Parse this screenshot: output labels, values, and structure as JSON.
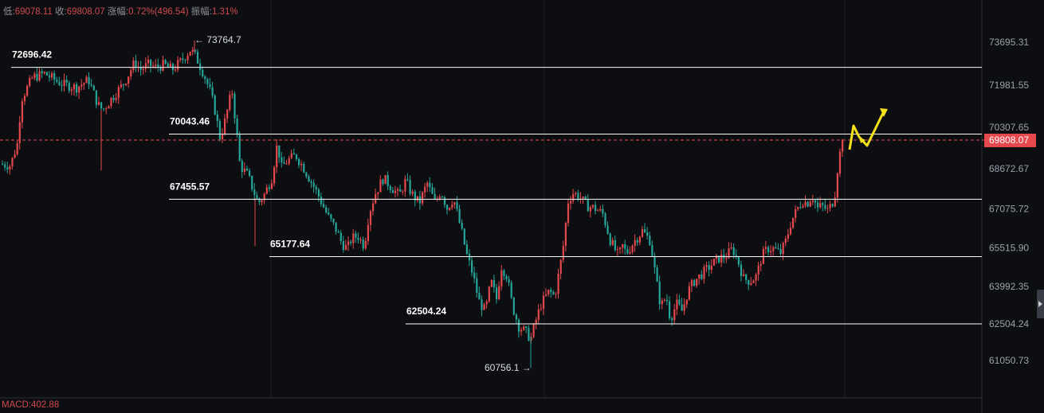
{
  "header": {
    "low_label": "低:",
    "low_value": "69078.11",
    "close_label": "收:",
    "close_value": "69808.07",
    "change_label": "涨幅:",
    "change_value": "0.72%(496.54)",
    "amp_label": "振幅:",
    "amp_value": "1.31%"
  },
  "macd": "MACD:402.88",
  "colors": {
    "up": "#e5484d",
    "down": "#26a69a",
    "background": "#0d0e11",
    "grid": "#1c1e23",
    "level": "#ffffff",
    "current": "#e5484d",
    "arrow": "#f5e11b",
    "axis_text": "#9aa0aa"
  },
  "chart_data": {
    "type": "candlestick",
    "y_ticks": [
      "73695.31",
      "71981.55",
      "70307.65",
      "68672.67",
      "67075.72",
      "65515.90",
      "63992.35",
      "62504.24",
      "61050.73"
    ],
    "current_price": "69808.07",
    "levels": [
      {
        "value": 72696.42,
        "label": "72696.42"
      },
      {
        "value": 70043.46,
        "label": "70043.46"
      },
      {
        "value": 67455.57,
        "label": "67455.57"
      },
      {
        "value": 65177.64,
        "label": "65177.64"
      },
      {
        "value": 62504.24,
        "label": "62504.24"
      }
    ],
    "annotations": [
      {
        "label": "← 73764.7",
        "kind": "high"
      },
      {
        "label": "60756.1 →",
        "kind": "low"
      }
    ],
    "path_x": [
      0,
      12,
      22,
      25,
      40,
      55,
      70,
      80,
      95,
      110,
      122,
      128,
      140,
      155,
      168,
      175,
      185,
      195,
      205,
      215,
      225,
      238,
      245,
      255,
      262,
      268,
      275,
      280,
      290,
      297,
      300,
      310,
      318,
      323,
      330,
      340,
      347,
      352,
      360,
      370,
      380,
      392,
      400,
      410,
      420,
      428,
      435,
      440,
      448,
      456,
      462,
      470,
      480,
      488,
      500,
      508,
      515,
      525,
      535,
      545,
      552,
      560,
      568,
      578,
      585,
      592,
      600,
      608,
      615,
      622,
      628,
      635,
      642,
      650,
      658,
      665,
      670,
      678,
      688,
      695,
      705,
      712,
      718,
      725,
      735,
      745,
      755,
      765,
      775,
      780,
      785,
      795,
      805,
      815,
      822,
      828,
      835,
      840,
      848,
      855,
      862,
      870,
      880,
      890,
      900,
      910,
      918,
      925,
      932,
      940,
      948,
      955,
      962,
      970,
      978,
      985,
      992,
      1000,
      1006,
      1012,
      1018,
      1025,
      1030,
      1038,
      1046,
      1050,
      1054,
      1058
    ],
    "path_y": [
      68850,
      68800,
      69800,
      71400,
      72300,
      72450,
      72150,
      72000,
      71900,
      72200,
      71200,
      71000,
      71500,
      72100,
      72900,
      72600,
      72800,
      72700,
      72800,
      72600,
      72900,
      73400,
      73100,
      72400,
      71800,
      71100,
      69900,
      70400,
      71800,
      69800,
      68800,
      68400,
      67700,
      67300,
      67600,
      68300,
      69700,
      68700,
      69000,
      69200,
      68700,
      68000,
      67500,
      66800,
      66300,
      65700,
      65500,
      65900,
      66000,
      65600,
      66900,
      67700,
      68300,
      68000,
      67600,
      68200,
      67700,
      67300,
      68100,
      67300,
      67800,
      67100,
      67500,
      66200,
      65200,
      64500,
      63400,
      63000,
      64200,
      63500,
      64800,
      64400,
      63200,
      62400,
      62200,
      61900,
      62500,
      63300,
      63800,
      63600,
      65400,
      67400,
      67700,
      67600,
      67200,
      67100,
      66900,
      65800,
      65200,
      65600,
      65300,
      65800,
      66200,
      65800,
      64300,
      63200,
      63600,
      62700,
      63300,
      63000,
      63800,
      64200,
      64500,
      64800,
      65100,
      65200,
      65500,
      65000,
      64300,
      64200,
      64400,
      65200,
      65500,
      65500,
      65300,
      65800,
      66600,
      67100,
      67400,
      67300,
      67600,
      67100,
      67200,
      67000,
      67500,
      68700,
      69500,
      69808
    ]
  }
}
